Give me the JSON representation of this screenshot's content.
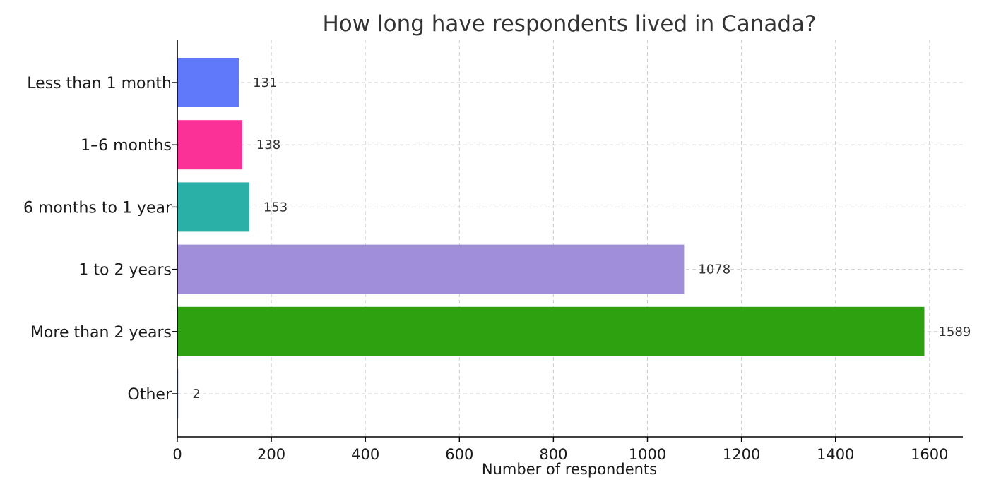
{
  "chart_data": {
    "type": "bar",
    "orientation": "horizontal",
    "title": "How long have respondents lived in Canada?",
    "xlabel": "Number of respondents",
    "ylabel": "",
    "xlim": [
      0,
      1670
    ],
    "xticks": [
      0,
      200,
      400,
      600,
      800,
      1000,
      1200,
      1400,
      1600
    ],
    "grid": true,
    "categories": [
      "Less than 1 month",
      "1–6 months",
      "6 months to 1 year",
      "1 to 2 years",
      "More than 2 years",
      "Other"
    ],
    "values": [
      131,
      138,
      153,
      1078,
      1589,
      2
    ],
    "colors": [
      "#6078fa",
      "#fb3197",
      "#2bb0a7",
      "#a08edb",
      "#2da110",
      "#9ea7f5"
    ]
  }
}
